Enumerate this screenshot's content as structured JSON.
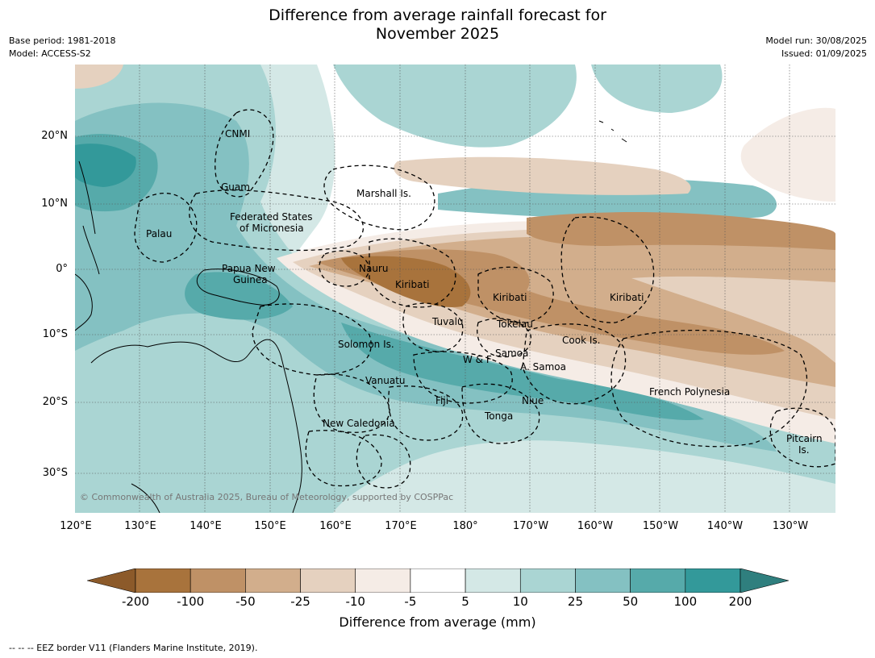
{
  "title_line1": "Difference from average rainfall forecast for",
  "title_line2": "November 2025",
  "meta_left": [
    "Base period: 1981-2018",
    "Model: ACCESS-S2"
  ],
  "meta_right": [
    "Model run: 30/08/2025",
    "Issued: 01/09/2025"
  ],
  "lat_labels": [
    "20°N",
    "10°N",
    "0°",
    "10°S",
    "20°S",
    "30°S"
  ],
  "lon_labels": [
    "120°E",
    "130°E",
    "140°E",
    "150°E",
    "160°E",
    "170°E",
    "180°",
    "170°W",
    "160°W",
    "150°W",
    "140°W",
    "130°W"
  ],
  "countries": {
    "cnmi": "CNMI",
    "guam": "Guam",
    "marshall": "Marshall Is.",
    "fsm1": "Federated States",
    "fsm2": "of Micronesia",
    "palau": "Palau",
    "png1": "Papua New",
    "png2": "Guinea",
    "nauru": "Nauru",
    "kiribati1": "Kiribati",
    "kiribati2": "Kiribati",
    "kiribati3": "Kiribati",
    "tuvalu": "Tuvalu",
    "tokelau": "Tokelau",
    "cook": "Cook Is.",
    "solomon": "Solomon Is.",
    "samoa": "Samoa",
    "wf": "W & F",
    "asamoa": "A. Samoa",
    "vanuatu": "Vanuatu",
    "fiji": "Fiji",
    "niue": "Niue",
    "tonga": "Tonga",
    "newcal": "New Caledonia",
    "frpoly": "French Polynesia",
    "pitcairn1": "Pitcairn",
    "pitcairn2": "Is."
  },
  "copyright": "© Commonwealth of Australia 2025, Bureau of Meteorology, supported by COSPPac",
  "colorbar": {
    "ticks": [
      "-200",
      "-100",
      "-50",
      "-25",
      "-10",
      "-5",
      "5",
      "10",
      "25",
      "50",
      "100",
      "200"
    ],
    "colors": [
      "#8c5a2a",
      "#a8733c",
      "#bf9166",
      "#d2ae8c",
      "#e5d1bf",
      "#f5ece6",
      "#ffffff",
      "#d4e8e6",
      "#aad5d3",
      "#84c1c2",
      "#56aaaa",
      "#33999a",
      "#2f7f7e"
    ],
    "label": "Difference from average (mm)"
  },
  "footer": "--  --  -- EEZ border V11 (Flanders Marine Institute, 2019)."
}
